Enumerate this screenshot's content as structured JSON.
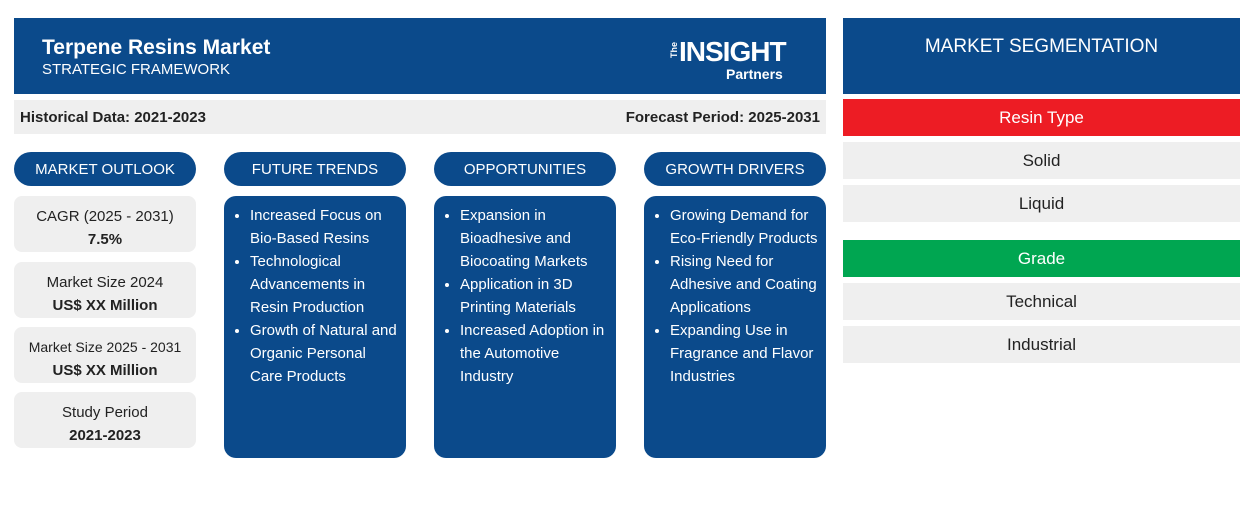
{
  "header": {
    "title": "Terpene Resins Market",
    "subtitle": "STRATEGIC FRAMEWORK",
    "logo": {
      "top": "The",
      "main": "INSIGHT",
      "bottom": "Partners"
    }
  },
  "period_bar": {
    "historical": "Historical Data: 2021-2023",
    "forecast": "Forecast Period: 2025-2031"
  },
  "market_outlook": {
    "heading": "MARKET OUTLOOK",
    "items": [
      {
        "label": "CAGR (2025 - 2031)",
        "value": "7.5%"
      },
      {
        "label": "Market Size 2024",
        "value": "US$ XX Million"
      },
      {
        "label": "Market Size 2025 - 2031",
        "value": "US$ XX Million"
      },
      {
        "label": "Study Period",
        "value": "2021-2023"
      }
    ]
  },
  "lists": [
    {
      "heading": "FUTURE TRENDS",
      "items": [
        "Increased Focus on Bio-Based Resins",
        "Technological Advancements in Resin Production",
        "Growth of Natural and Organic Personal Care Products"
      ]
    },
    {
      "heading": "OPPORTUNITIES",
      "items": [
        "Expansion in Bioadhesive and Biocoating Markets",
        "Application in 3D Printing Materials",
        "Increased Adoption in the Automotive Industry"
      ]
    },
    {
      "heading": "GROWTH DRIVERS",
      "items": [
        "Growing Demand for Eco-Friendly Products",
        "Rising Need for Adhesive and Coating Applications",
        "Expanding Use in Fragrance and Flavor Industries"
      ]
    }
  ],
  "segmentation": {
    "title": "MARKET SEGMENTATION",
    "groups": [
      {
        "name": "Resin Type",
        "items": [
          "Solid",
          "Liquid"
        ]
      },
      {
        "name": "Grade",
        "items": [
          "Technical",
          "Industrial"
        ]
      }
    ]
  }
}
